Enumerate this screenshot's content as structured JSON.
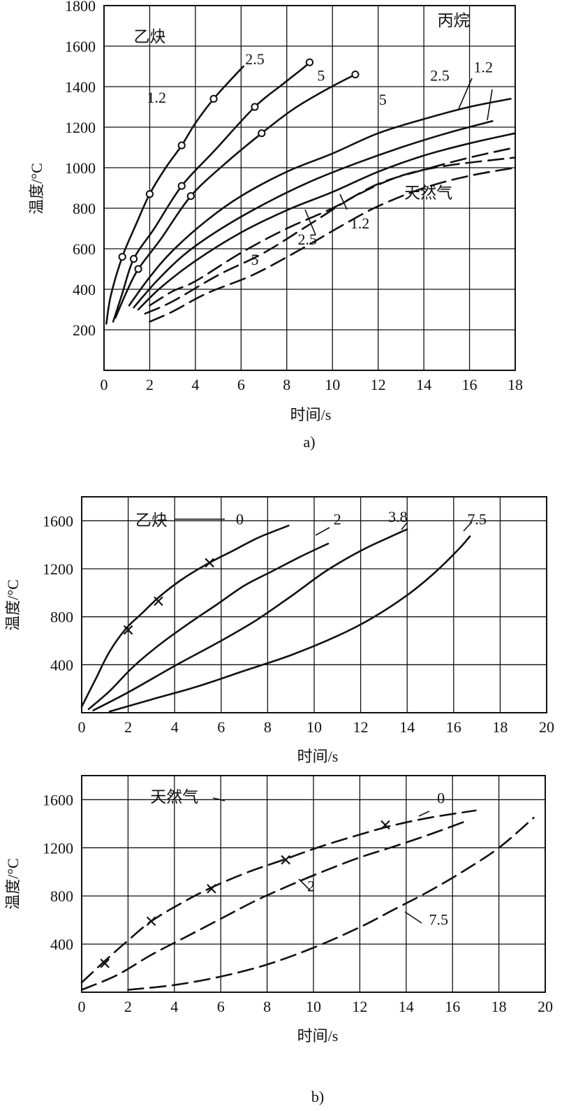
{
  "chart_data": [
    {
      "id": "a",
      "type": "line",
      "caption": "a)",
      "xlabel": "时间/s",
      "ylabel": "温度/°C",
      "xlim": [
        0,
        18
      ],
      "ylim": [
        0,
        1800
      ],
      "xticks": [
        "0",
        "2",
        "4",
        "6",
        "8",
        "10",
        "12",
        "14",
        "16",
        "18"
      ],
      "yticks": [
        "200",
        "400",
        "600",
        "800",
        "1000",
        "1200",
        "1400",
        "1600",
        "1800"
      ],
      "grid": true,
      "group_labels": [
        {
          "text": "乙炔",
          "x": 2.0,
          "y": 1620
        },
        {
          "text": "丙烷",
          "x": 15.3,
          "y": 1700
        },
        {
          "text": "天然气",
          "x": 14.2,
          "y": 850
        }
      ],
      "series": [
        {
          "group": "乙炔",
          "style": "solid",
          "marker": "circle",
          "label": "2.5",
          "points": [
            [
              0.1,
              230
            ],
            [
              0.3,
              370
            ],
            [
              0.8,
              560
            ],
            [
              1.4,
              720
            ],
            [
              2.0,
              870
            ],
            [
              2.7,
              1000
            ],
            [
              3.4,
              1110
            ],
            [
              4.0,
              1220
            ],
            [
              4.8,
              1340
            ],
            [
              5.6,
              1440
            ],
            [
              6.1,
              1500
            ]
          ],
          "marked": [
            [
              0.8,
              560
            ],
            [
              2.0,
              870
            ],
            [
              3.4,
              1110
            ],
            [
              4.8,
              1340
            ]
          ]
        },
        {
          "group": "乙炔",
          "style": "solid",
          "marker": "circle",
          "label": "1.2",
          "points": [
            [
              0.4,
              240
            ],
            [
              0.8,
              380
            ],
            [
              1.3,
              550
            ],
            [
              2.2,
              700
            ],
            [
              3.4,
              910
            ],
            [
              4.8,
              1080
            ],
            [
              6.6,
              1300
            ],
            [
              7.8,
              1410
            ],
            [
              8.7,
              1490
            ],
            [
              9.0,
              1520
            ]
          ],
          "marked": [
            [
              1.3,
              550
            ],
            [
              3.4,
              910
            ],
            [
              6.6,
              1300
            ],
            [
              9.0,
              1520
            ]
          ]
        },
        {
          "group": "乙炔",
          "style": "solid",
          "marker": "circle",
          "label": "5",
          "points": [
            [
              0.5,
              260
            ],
            [
              1.0,
              390
            ],
            [
              1.5,
              500
            ],
            [
              2.5,
              650
            ],
            [
              3.8,
              860
            ],
            [
              5.3,
              1020
            ],
            [
              6.9,
              1170
            ],
            [
              8.3,
              1290
            ],
            [
              9.8,
              1390
            ],
            [
              11.0,
              1460
            ]
          ],
          "marked": [
            [
              1.5,
              500
            ],
            [
              3.8,
              860
            ],
            [
              6.9,
              1170
            ],
            [
              11.0,
              1460
            ]
          ]
        },
        {
          "group": "丙烷",
          "style": "solid",
          "label": "2.5",
          "points": [
            [
              1.1,
              320
            ],
            [
              2.0,
              460
            ],
            [
              3.0,
              590
            ],
            [
              4.5,
              740
            ],
            [
              6.0,
              860
            ],
            [
              8.0,
              980
            ],
            [
              10.0,
              1070
            ],
            [
              12.0,
              1170
            ],
            [
              14.0,
              1240
            ],
            [
              16.0,
              1300
            ],
            [
              17.8,
              1340
            ]
          ]
        },
        {
          "group": "丙烷",
          "style": "solid",
          "label": "1.2",
          "points": [
            [
              1.3,
              310
            ],
            [
              2.3,
              440
            ],
            [
              3.5,
              570
            ],
            [
              5.0,
              690
            ],
            [
              7.0,
              820
            ],
            [
              9.0,
              930
            ],
            [
              11.0,
              1020
            ],
            [
              13.0,
              1100
            ],
            [
              15.0,
              1170
            ],
            [
              17.0,
              1230
            ]
          ]
        },
        {
          "group": "丙烷",
          "style": "solid",
          "label": "5",
          "points": [
            [
              1.5,
              300
            ],
            [
              2.5,
              410
            ],
            [
              4.0,
              540
            ],
            [
              6.0,
              680
            ],
            [
              8.0,
              790
            ],
            [
              10.0,
              880
            ],
            [
              12.0,
              980
            ],
            [
              14.0,
              1060
            ],
            [
              16.0,
              1120
            ],
            [
              18.0,
              1170
            ]
          ]
        },
        {
          "group": "天然气",
          "style": "dashed",
          "label": "2.5",
          "points": [
            [
              2.0,
              320
            ],
            [
              3.0,
              390
            ],
            [
              4.0,
              440
            ],
            [
              6.0,
              580
            ],
            [
              8.0,
              700
            ],
            [
              10.0,
              800
            ],
            [
              12.0,
              920
            ],
            [
              14.0,
              990
            ],
            [
              16.0,
              1050
            ],
            [
              18.0,
              1100
            ]
          ]
        },
        {
          "group": "天然气",
          "style": "dashed",
          "label": "1.2",
          "points": [
            [
              1.8,
              280
            ],
            [
              3.0,
              340
            ],
            [
              5.0,
              470
            ],
            [
              7.0,
              580
            ],
            [
              9.0,
              720
            ],
            [
              11.0,
              860
            ],
            [
              13.0,
              960
            ],
            [
              15.0,
              1010
            ],
            [
              18.0,
              1050
            ]
          ]
        },
        {
          "group": "天然气",
          "style": "dashed",
          "label": "5",
          "points": [
            [
              2.0,
              240
            ],
            [
              3.0,
              290
            ],
            [
              4.5,
              380
            ],
            [
              6.5,
              470
            ],
            [
              8.5,
              590
            ],
            [
              10.5,
              720
            ],
            [
              12.0,
              810
            ],
            [
              14.0,
              900
            ],
            [
              16.0,
              960
            ],
            [
              18.0,
              1000
            ]
          ]
        }
      ],
      "inline_labels": [
        {
          "text": "2.5",
          "x": 6.6,
          "y": 1510
        },
        {
          "text": "1.2",
          "x": 2.3,
          "y": 1320
        },
        {
          "text": "5",
          "x": 9.5,
          "y": 1430
        },
        {
          "text": "5",
          "x": 12.2,
          "y": 1310
        },
        {
          "text": "2.5",
          "x": 14.7,
          "y": 1430
        },
        {
          "text": "1.2",
          "x": 16.6,
          "y": 1470
        },
        {
          "text": "1.2",
          "x": 11.2,
          "y": 700
        },
        {
          "text": "2.5",
          "x": 8.9,
          "y": 620
        },
        {
          "text": "5",
          "x": 6.6,
          "y": 520
        }
      ]
    },
    {
      "id": "b1",
      "type": "line",
      "xlabel": "时间/s",
      "ylabel": "温度/°C",
      "xlim": [
        0,
        20
      ],
      "ylim": [
        0,
        1800
      ],
      "xticks": [
        "0",
        "2",
        "4",
        "6",
        "8",
        "10",
        "12",
        "14",
        "16",
        "18",
        "20"
      ],
      "yticks": [
        "400",
        "800",
        "1200",
        "1600"
      ],
      "grid": true,
      "group_labels": [
        {
          "text": "乙炔",
          "x": 3.0,
          "y": 1560
        }
      ],
      "series": [
        {
          "style": "solid",
          "marker": "x",
          "label": "0",
          "points": [
            [
              0.0,
              50
            ],
            [
              0.6,
              280
            ],
            [
              1.2,
              510
            ],
            [
              1.9,
              700
            ],
            [
              2.6,
              830
            ],
            [
              3.3,
              960
            ],
            [
              4.3,
              1110
            ],
            [
              5.4,
              1240
            ],
            [
              6.5,
              1350
            ],
            [
              7.6,
              1460
            ],
            [
              8.9,
              1560
            ]
          ],
          "marked": [
            [
              2.0,
              690
            ],
            [
              3.3,
              930
            ],
            [
              5.5,
              1250
            ]
          ]
        },
        {
          "style": "solid",
          "label": "2",
          "points": [
            [
              0.3,
              30
            ],
            [
              1.2,
              180
            ],
            [
              2.2,
              380
            ],
            [
              3.3,
              560
            ],
            [
              4.5,
              730
            ],
            [
              5.8,
              900
            ],
            [
              7.0,
              1060
            ],
            [
              8.2,
              1180
            ],
            [
              9.4,
              1300
            ],
            [
              10.6,
              1410
            ]
          ]
        },
        {
          "style": "solid",
          "label": "3.8",
          "points": [
            [
              0.5,
              20
            ],
            [
              2.0,
              170
            ],
            [
              4.0,
              390
            ],
            [
              6.0,
              600
            ],
            [
              7.5,
              770
            ],
            [
              9.0,
              970
            ],
            [
              10.5,
              1180
            ],
            [
              12.0,
              1350
            ],
            [
              13.2,
              1460
            ],
            [
              14.0,
              1530
            ]
          ]
        },
        {
          "style": "solid",
          "label": "7.5",
          "points": [
            [
              1.2,
              10
            ],
            [
              3.0,
              110
            ],
            [
              5.0,
              220
            ],
            [
              7.0,
              350
            ],
            [
              9.0,
              480
            ],
            [
              11.0,
              640
            ],
            [
              12.5,
              790
            ],
            [
              14.0,
              980
            ],
            [
              15.2,
              1170
            ],
            [
              16.2,
              1360
            ],
            [
              16.7,
              1470
            ]
          ]
        }
      ],
      "inline_labels": [
        {
          "text": "0",
          "x": 6.8,
          "y": 1570
        },
        {
          "text": "2",
          "x": 11.0,
          "y": 1570
        },
        {
          "text": "3.8",
          "x": 13.6,
          "y": 1590
        },
        {
          "text": "7.5",
          "x": 17.0,
          "y": 1570
        }
      ]
    },
    {
      "id": "b2",
      "type": "line",
      "caption": "b)",
      "xlabel": "时间/s",
      "ylabel": "温度/°C",
      "xlim": [
        0,
        20
      ],
      "ylim": [
        0,
        1800
      ],
      "xticks": [
        "0",
        "2",
        "4",
        "6",
        "8",
        "10",
        "12",
        "14",
        "16",
        "18",
        "20"
      ],
      "yticks": [
        "400",
        "800",
        "1200",
        "1600"
      ],
      "grid": true,
      "group_labels": [
        {
          "text": "天然气",
          "x": 4.0,
          "y": 1580
        }
      ],
      "series": [
        {
          "style": "dashed",
          "marker": "x",
          "label": "0",
          "points": [
            [
              0.0,
              80
            ],
            [
              1.0,
              260
            ],
            [
              2.0,
              430
            ],
            [
              3.0,
              590
            ],
            [
              4.3,
              740
            ],
            [
              5.6,
              870
            ],
            [
              7.2,
              1000
            ],
            [
              8.7,
              1100
            ],
            [
              10.3,
              1210
            ],
            [
              12.0,
              1310
            ],
            [
              13.3,
              1380
            ],
            [
              15.0,
              1450
            ],
            [
              17.0,
              1510
            ]
          ],
          "marked": [
            [
              1.0,
              240
            ],
            [
              3.0,
              590
            ],
            [
              5.6,
              860
            ],
            [
              8.8,
              1100
            ],
            [
              13.1,
              1390
            ]
          ]
        },
        {
          "style": "dashed",
          "label": "2",
          "points": [
            [
              0.0,
              20
            ],
            [
              1.5,
              140
            ],
            [
              3.0,
              310
            ],
            [
              4.5,
              460
            ],
            [
              6.0,
              610
            ],
            [
              7.5,
              760
            ],
            [
              9.0,
              890
            ],
            [
              10.5,
              1010
            ],
            [
              12.0,
              1120
            ],
            [
              13.3,
              1200
            ],
            [
              15.0,
              1310
            ],
            [
              16.7,
              1430
            ]
          ]
        },
        {
          "style": "dashed",
          "label": "7.5",
          "points": [
            [
              2.0,
              20
            ],
            [
              4.0,
              60
            ],
            [
              6.0,
              130
            ],
            [
              8.0,
              230
            ],
            [
              10.0,
              370
            ],
            [
              12.0,
              540
            ],
            [
              13.5,
              690
            ],
            [
              15.0,
              840
            ],
            [
              16.5,
              1010
            ],
            [
              18.0,
              1200
            ],
            [
              19.5,
              1450
            ]
          ]
        }
      ],
      "inline_labels": [
        {
          "text": "0",
          "x": 15.5,
          "y": 1570
        },
        {
          "text": "2",
          "x": 9.9,
          "y": 840
        },
        {
          "text": "7.5",
          "x": 15.4,
          "y": 560
        }
      ]
    }
  ]
}
